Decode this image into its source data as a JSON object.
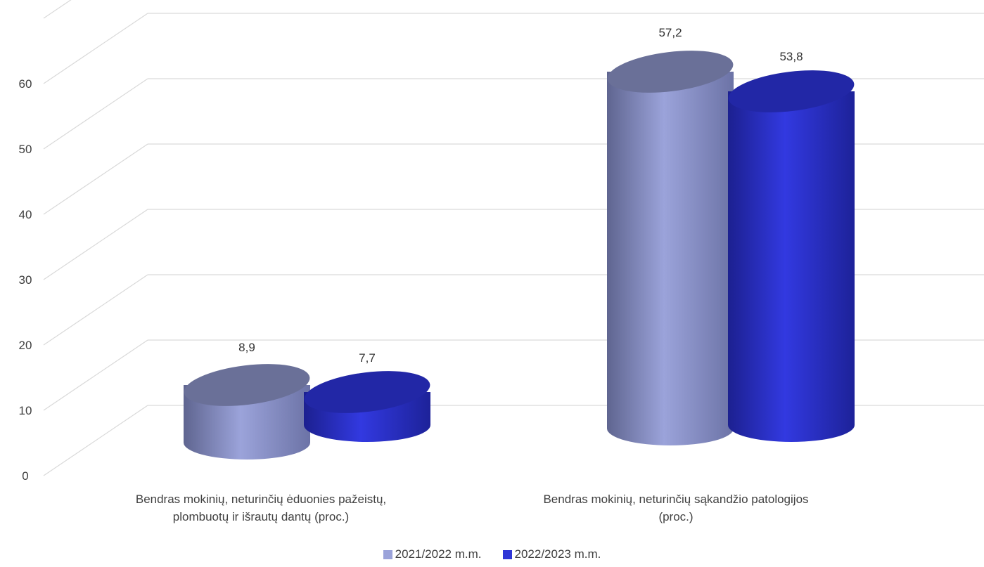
{
  "chart_data": {
    "type": "bar",
    "style": "3d-cylinder",
    "categories": [
      [
        "Bendras mokinių, neturinčių ėduonies pažeistų,",
        "plombuotų ir išrautų dantų (proc.)"
      ],
      [
        "Bendras mokinių, neturinčių sąkandžio patologijos",
        "(proc.)"
      ]
    ],
    "series": [
      {
        "name": "2021/2022 m.m.",
        "values": [
          8.9,
          57.2
        ],
        "labels": [
          "8,9",
          "57,2"
        ],
        "color": "#9BA3DA"
      },
      {
        "name": "2022/2023 m.m.",
        "values": [
          7.7,
          53.8
        ],
        "labels": [
          "7,7",
          "53,8"
        ],
        "color": "#2E35D6"
      }
    ],
    "ylim": [
      0,
      70
    ],
    "yticks": [
      "0",
      "10",
      "20",
      "30",
      "40",
      "50",
      "60"
    ],
    "grid": true,
    "legend_position": "bottom"
  }
}
